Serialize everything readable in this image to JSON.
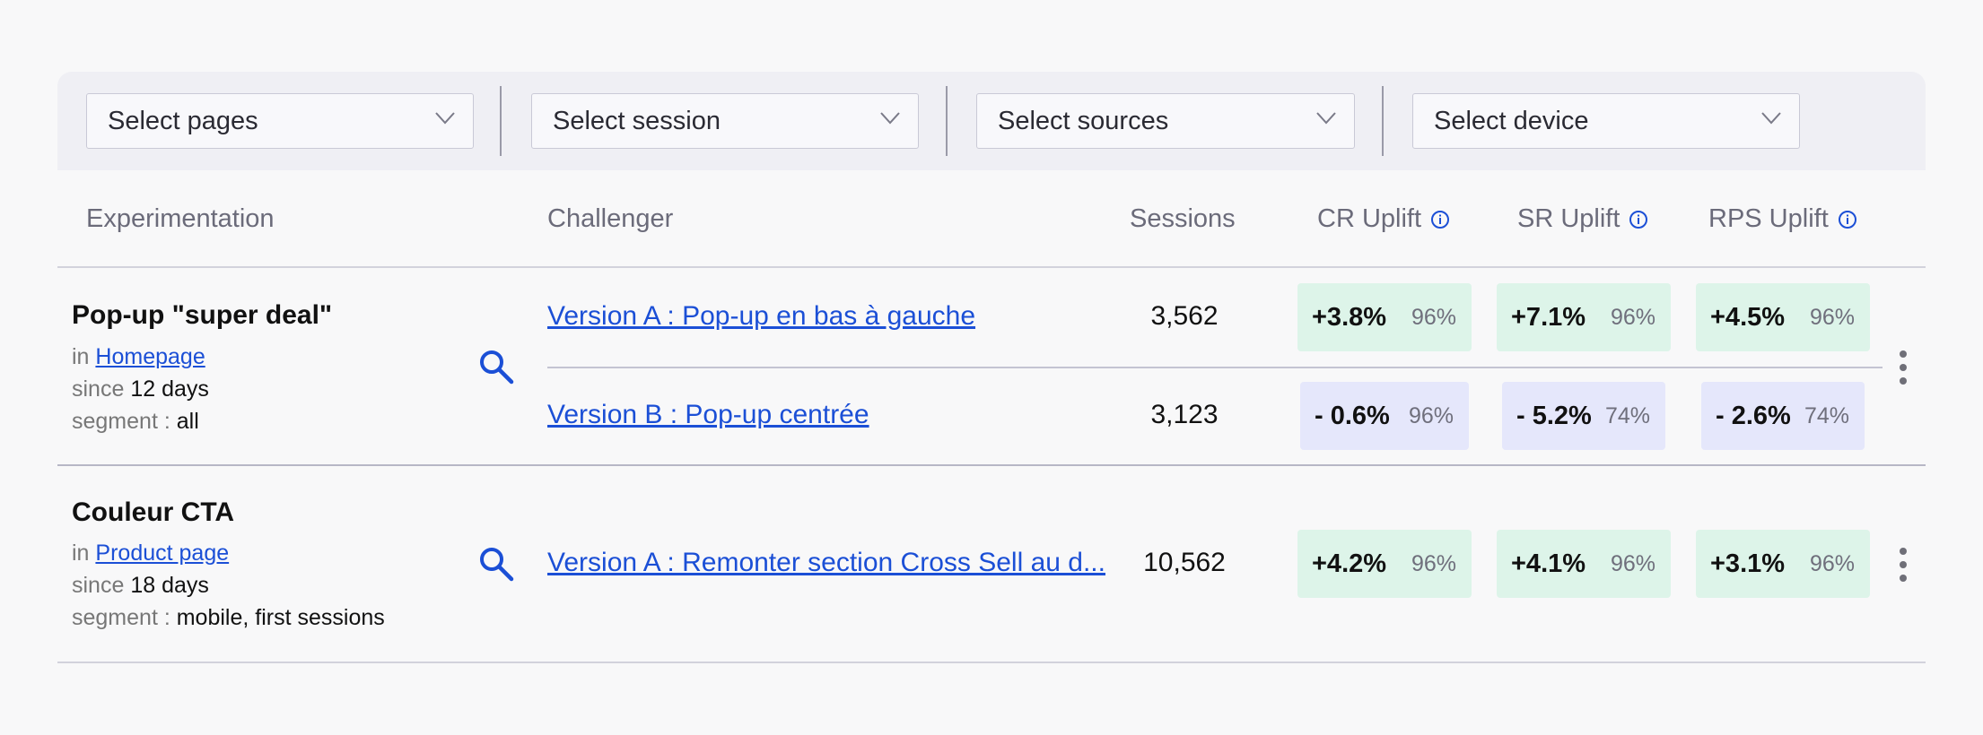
{
  "filters": [
    {
      "placeholder": "Select pages"
    },
    {
      "placeholder": "Select session"
    },
    {
      "placeholder": "Select sources"
    },
    {
      "placeholder": "Select device"
    }
  ],
  "columns": {
    "experimentation": "Experimentation",
    "challenger": "Challenger",
    "sessions": "Sessions",
    "cr_uplift": "CR Uplift",
    "sr_uplift": "SR Uplift",
    "rps_uplift": "RPS Uplift"
  },
  "labels": {
    "in": "in",
    "since": "since",
    "segment": "segment :"
  },
  "colors": {
    "positive_bg": "#ddf4e9",
    "negative_bg": "#e5e7fb",
    "link": "#1b4fd6"
  },
  "experiments": [
    {
      "title": "Pop-up \"super deal\"",
      "page": "Homepage",
      "since": "12 days",
      "segment": "all",
      "variants": [
        {
          "name": "Version A : Pop-up en bas à gauche",
          "sessions": "3,562",
          "cr": {
            "value": "+3.8%",
            "confidence": "96%"
          },
          "sr": {
            "value": "+7.1%",
            "confidence": "96%"
          },
          "rps": {
            "value": "+4.5%",
            "confidence": "96%"
          }
        },
        {
          "name": "Version B : Pop-up centrée",
          "sessions": "3,123",
          "cr": {
            "value": "- 0.6%",
            "confidence": "96%"
          },
          "sr": {
            "value": "- 5.2%",
            "confidence": "74%"
          },
          "rps": {
            "value": "- 2.6%",
            "confidence": "74%"
          }
        }
      ]
    },
    {
      "title": "Couleur CTA",
      "page": "Product page",
      "since": "18 days",
      "segment": "mobile, first sessions",
      "variants": [
        {
          "name": "Version A : Remonter section Cross Sell au d...",
          "sessions": "10,562",
          "cr": {
            "value": "+4.2%",
            "confidence": "96%"
          },
          "sr": {
            "value": "+4.1%",
            "confidence": "96%"
          },
          "rps": {
            "value": "+3.1%",
            "confidence": "96%"
          }
        }
      ]
    }
  ]
}
